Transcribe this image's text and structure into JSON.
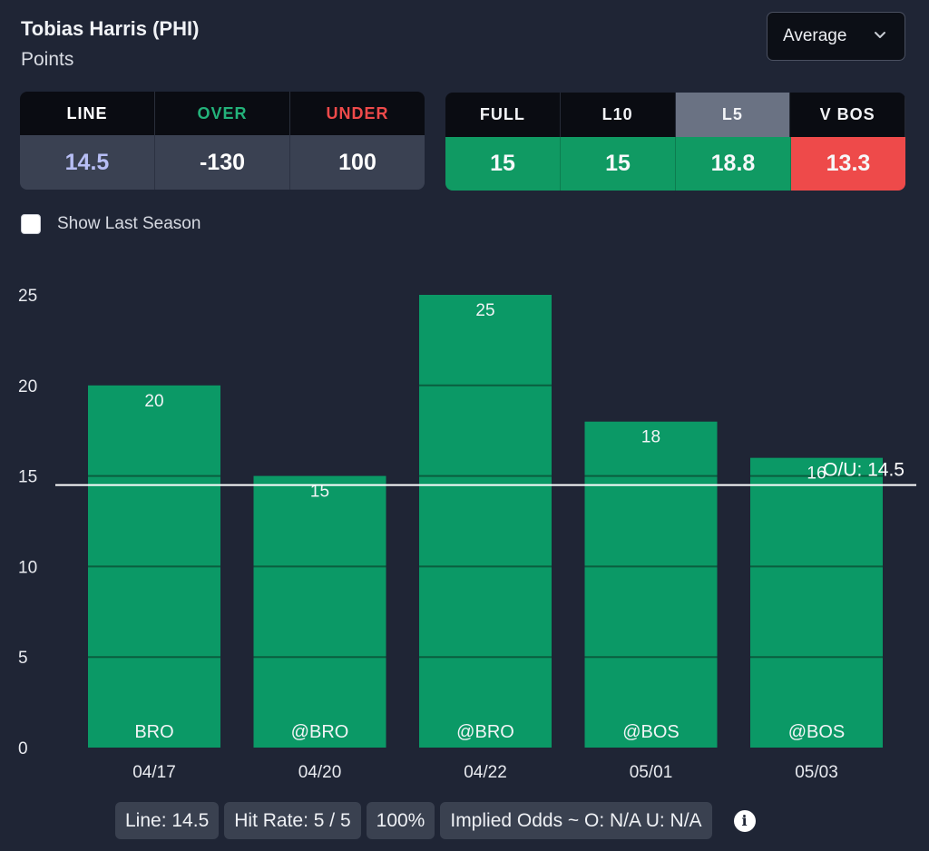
{
  "header": {
    "player": "Tobias Harris (PHI)",
    "stat": "Points",
    "dropdown_value": "Average"
  },
  "odds": {
    "headers": [
      {
        "label": "LINE",
        "color": "#ffffff"
      },
      {
        "label": "OVER",
        "color": "#23b27a"
      },
      {
        "label": "UNDER",
        "color": "#ee4a4a"
      }
    ],
    "values": [
      {
        "value": "14.5",
        "color": "#b7bef5"
      },
      {
        "value": "-130",
        "color": "#ffffff"
      },
      {
        "value": "100",
        "color": "#ffffff"
      }
    ]
  },
  "averages": {
    "tabs": [
      "FULL",
      "L10",
      "L5",
      "V BOS"
    ],
    "selected_tab": "L5",
    "values": [
      "15",
      "15",
      "18.8",
      "13.3"
    ]
  },
  "options": {
    "show_last_season_label": "Show Last Season"
  },
  "chart_data": {
    "type": "bar",
    "categories": [
      "04/17",
      "04/20",
      "04/22",
      "05/01",
      "05/03"
    ],
    "opponents": [
      "BRO",
      "@BRO",
      "@BRO",
      "@BOS",
      "@BOS"
    ],
    "values": [
      20,
      15,
      25,
      18,
      16
    ],
    "value_labels": [
      "20",
      "15",
      "25",
      "18",
      "16"
    ],
    "ylim": [
      0,
      25
    ],
    "yticks": [
      0,
      5,
      10,
      15,
      20,
      25
    ],
    "line_value": 14.5,
    "line_label": "O/U: 14.5",
    "bar_color": "#0b9966",
    "line_color": "#ffffff"
  },
  "footer": {
    "line": "Line: 14.5",
    "hit_rate": "Hit Rate: 5 / 5",
    "percent": "100%",
    "implied_odds": "Implied Odds ~ O: N/A U: N/A"
  }
}
